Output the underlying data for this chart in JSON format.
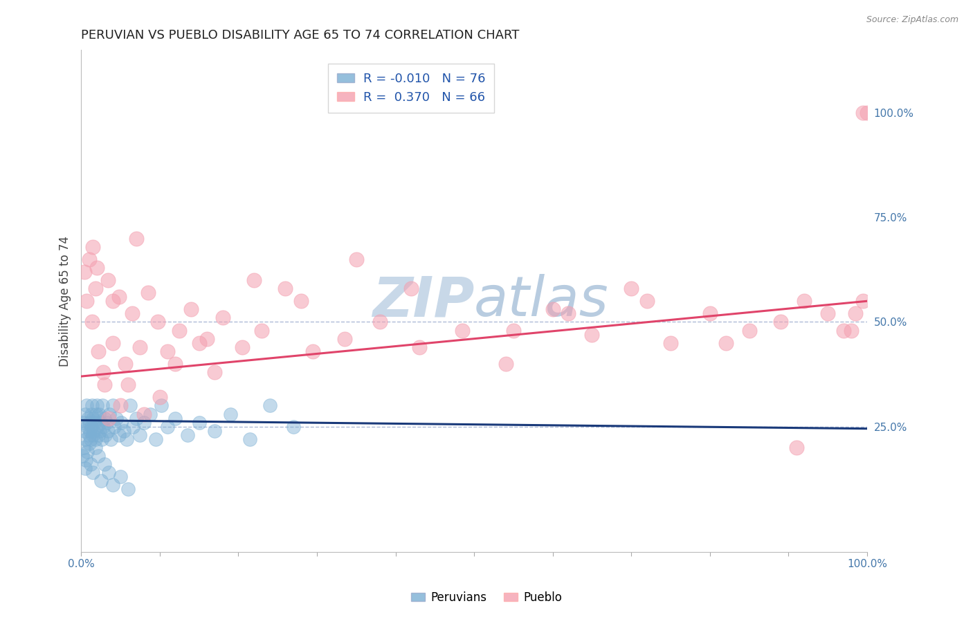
{
  "title": "PERUVIAN VS PUEBLO DISABILITY AGE 65 TO 74 CORRELATION CHART",
  "ylabel": "Disability Age 65 to 74",
  "source_text": "Source: ZipAtlas.com",
  "legend_blue_r": "R = -0.010",
  "legend_blue_n": "N = 76",
  "legend_pink_r": "R =  0.370",
  "legend_pink_n": "N = 66",
  "legend_label_blue": "Peruvians",
  "legend_label_pink": "Pueblo",
  "xlim": [
    0.0,
    100.0
  ],
  "ylim": [
    -5.0,
    115.0
  ],
  "y_tick_vals_right": [
    25.0,
    50.0,
    75.0,
    100.0
  ],
  "y_tick_labels_right": [
    "25.0%",
    "50.0%",
    "75.0%",
    "100.0%"
  ],
  "dashed_lines": [
    25.0,
    50.0
  ],
  "blue_color": "#7BAFD4",
  "pink_color": "#F4A0B0",
  "blue_line_color": "#1A3A7A",
  "pink_line_color": "#E0446A",
  "background_color": "#FFFFFF",
  "watermark_color": "#C8D8E8",
  "peru_x": [
    0.3,
    0.4,
    0.5,
    0.6,
    0.7,
    0.8,
    0.9,
    1.0,
    1.0,
    1.1,
    1.2,
    1.3,
    1.3,
    1.4,
    1.5,
    1.5,
    1.6,
    1.7,
    1.8,
    1.9,
    2.0,
    2.0,
    2.1,
    2.2,
    2.3,
    2.4,
    2.5,
    2.6,
    2.7,
    2.8,
    3.0,
    3.1,
    3.2,
    3.4,
    3.6,
    3.8,
    4.0,
    4.2,
    4.5,
    4.8,
    5.1,
    5.4,
    5.8,
    6.2,
    6.6,
    7.0,
    7.5,
    8.0,
    8.8,
    9.5,
    10.2,
    11.0,
    12.0,
    13.5,
    15.0,
    17.0,
    19.0,
    21.5,
    24.0,
    27.0,
    0.2,
    0.3,
    0.5,
    0.6,
    0.8,
    1.0,
    1.2,
    1.5,
    1.8,
    2.2,
    2.5,
    3.0,
    3.5,
    4.0,
    5.0,
    6.0
  ],
  "peru_y": [
    26.0,
    24.0,
    28.0,
    22.0,
    30.0,
    25.0,
    27.0,
    23.0,
    26.0,
    24.0,
    22.0,
    28.0,
    25.0,
    30.0,
    23.0,
    27.0,
    24.0,
    26.0,
    22.0,
    28.0,
    25.0,
    30.0,
    27.0,
    23.0,
    28.0,
    24.0,
    26.0,
    22.0,
    30.0,
    25.0,
    27.0,
    23.0,
    26.0,
    24.0,
    28.0,
    22.0,
    30.0,
    25.0,
    27.0,
    23.0,
    26.0,
    24.0,
    22.0,
    30.0,
    25.0,
    27.0,
    23.0,
    26.0,
    28.0,
    22.0,
    30.0,
    25.0,
    27.0,
    23.0,
    26.0,
    24.0,
    28.0,
    22.0,
    30.0,
    25.0,
    18.0,
    20.0,
    15.0,
    17.0,
    19.0,
    21.0,
    16.0,
    14.0,
    20.0,
    18.0,
    12.0,
    16.0,
    14.0,
    11.0,
    13.0,
    10.0
  ],
  "pueblo_x": [
    0.4,
    0.7,
    1.0,
    1.4,
    1.8,
    2.2,
    2.8,
    3.4,
    4.0,
    4.8,
    5.6,
    6.5,
    7.5,
    8.5,
    9.8,
    11.0,
    12.5,
    14.0,
    16.0,
    18.0,
    20.5,
    23.0,
    26.0,
    29.5,
    33.5,
    38.0,
    43.0,
    48.5,
    54.0,
    60.0,
    65.0,
    70.0,
    75.0,
    80.0,
    85.0,
    89.0,
    92.0,
    95.0,
    97.0,
    98.5,
    99.5,
    100.0,
    99.5,
    98.0,
    3.0,
    3.5,
    5.0,
    6.0,
    8.0,
    10.0,
    12.0,
    15.0,
    17.0,
    1.5,
    2.0,
    4.0,
    7.0,
    22.0,
    28.0,
    35.0,
    42.0,
    55.0,
    62.0,
    72.0,
    82.0,
    91.0
  ],
  "pueblo_y": [
    62.0,
    55.0,
    65.0,
    50.0,
    58.0,
    43.0,
    38.0,
    60.0,
    45.0,
    56.0,
    40.0,
    52.0,
    44.0,
    57.0,
    50.0,
    43.0,
    48.0,
    53.0,
    46.0,
    51.0,
    44.0,
    48.0,
    58.0,
    43.0,
    46.0,
    50.0,
    44.0,
    48.0,
    40.0,
    53.0,
    47.0,
    58.0,
    45.0,
    52.0,
    48.0,
    50.0,
    55.0,
    52.0,
    48.0,
    52.0,
    55.0,
    100.0,
    100.0,
    48.0,
    35.0,
    27.0,
    30.0,
    35.0,
    28.0,
    32.0,
    40.0,
    45.0,
    38.0,
    68.0,
    63.0,
    55.0,
    70.0,
    60.0,
    55.0,
    65.0,
    58.0,
    48.0,
    52.0,
    55.0,
    45.0,
    20.0
  ],
  "blue_regression_x0": 0.0,
  "blue_regression_y0": 26.5,
  "blue_regression_x1": 100.0,
  "blue_regression_y1": 24.5,
  "pink_regression_x0": 0.0,
  "pink_regression_y0": 37.0,
  "pink_regression_x1": 100.0,
  "pink_regression_y1": 55.0
}
